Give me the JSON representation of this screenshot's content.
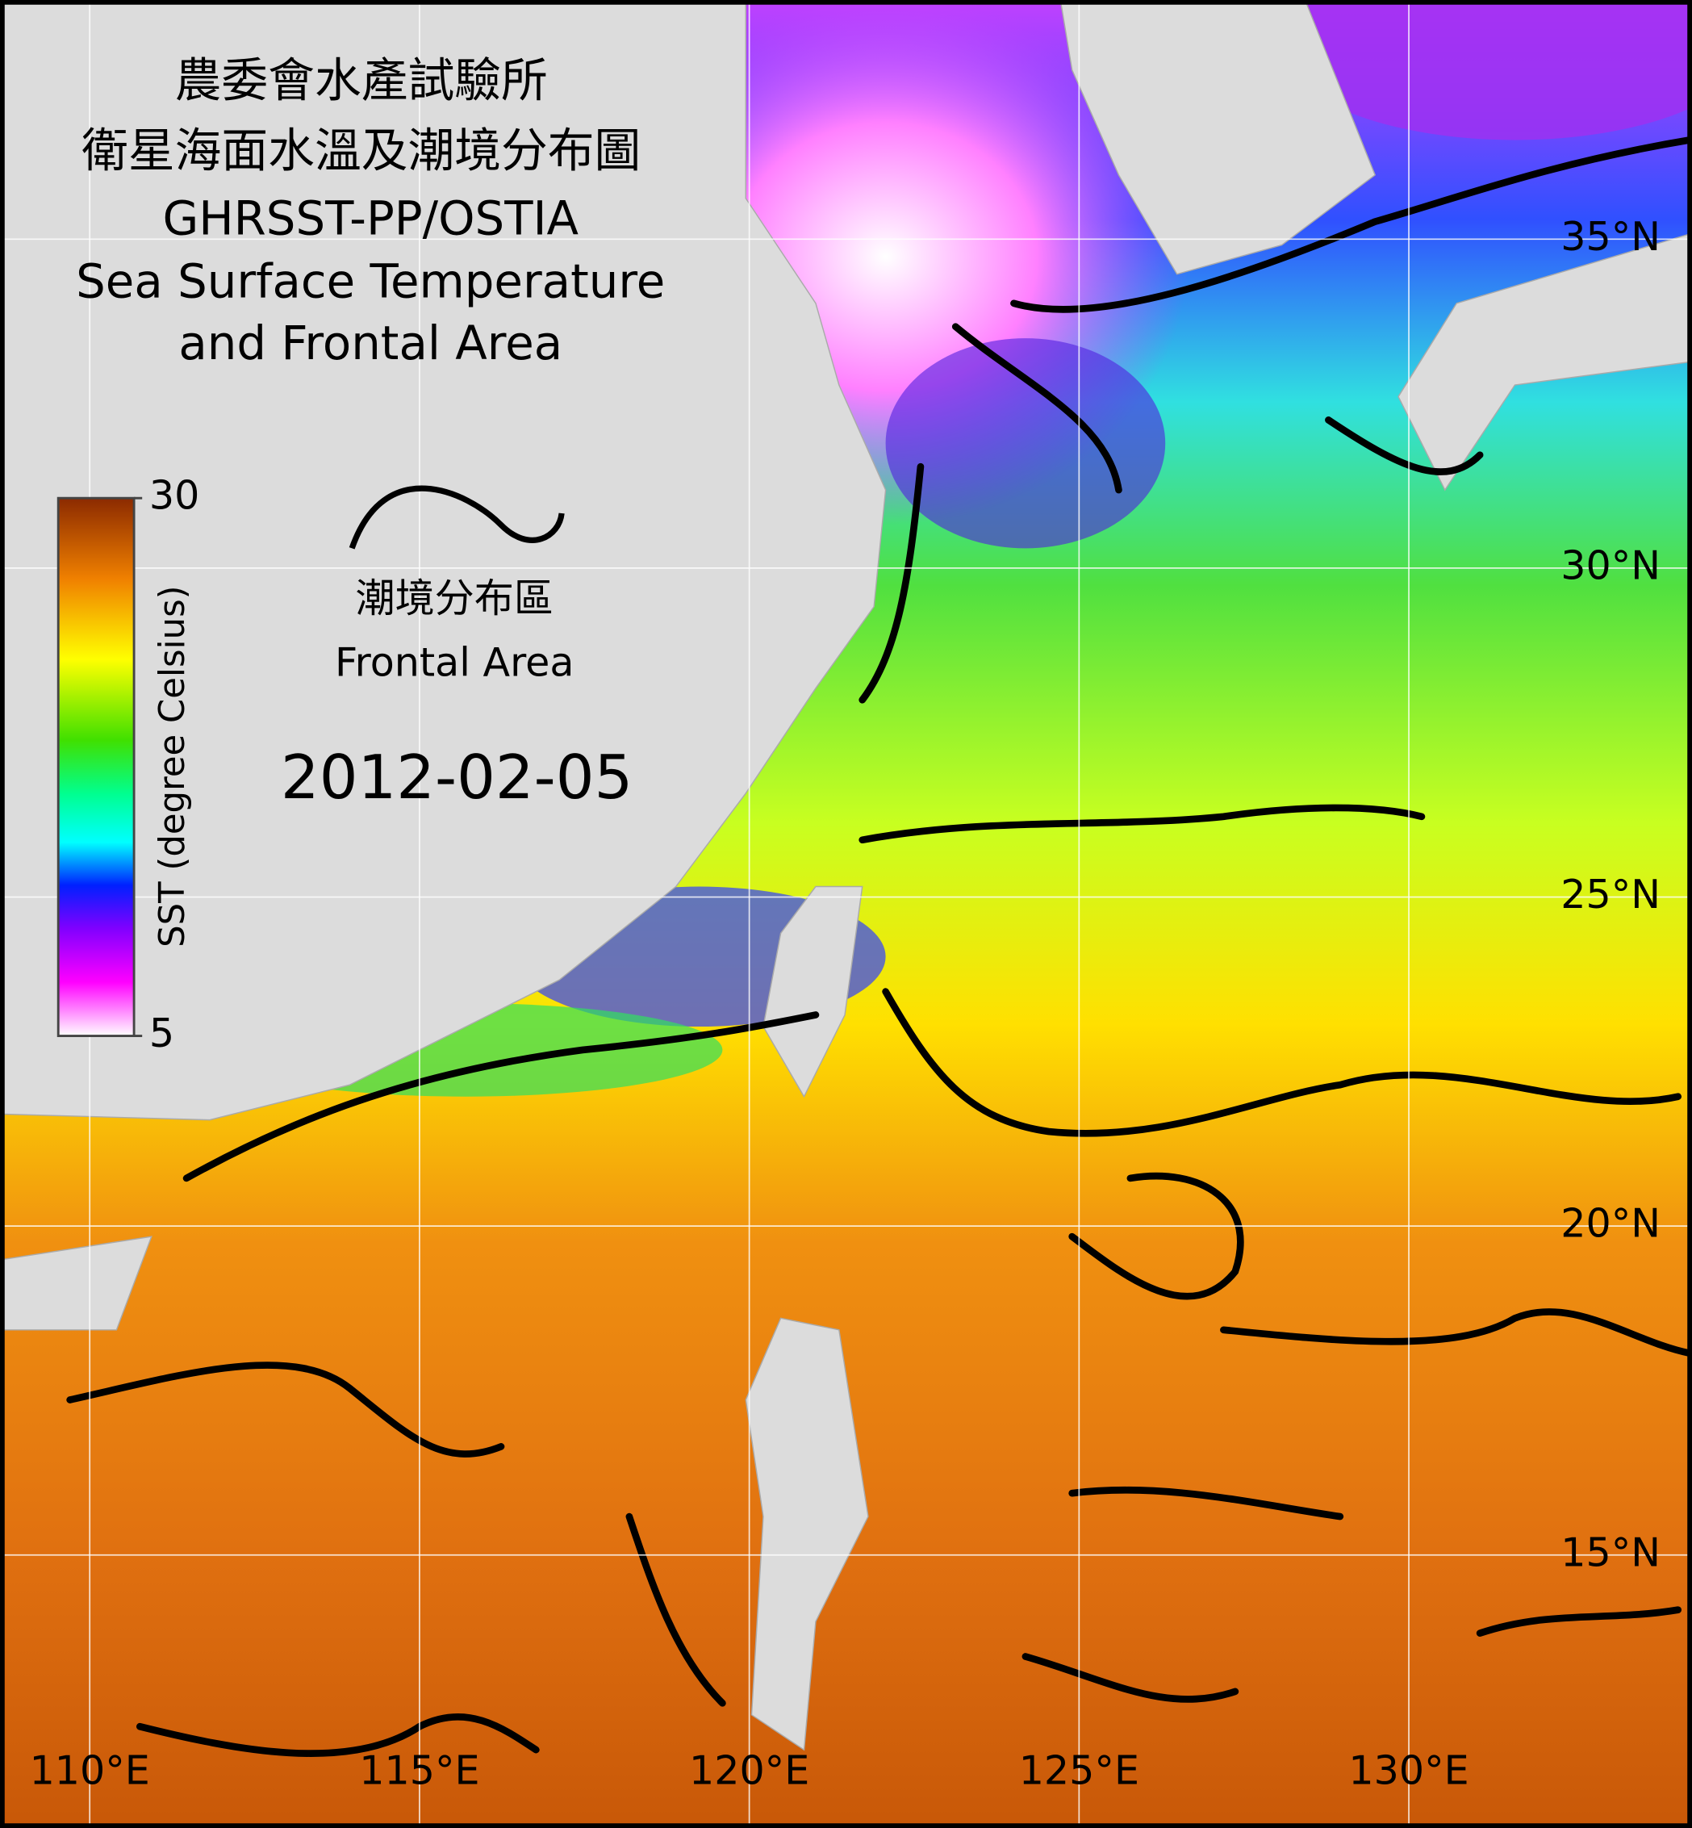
{
  "title": [
    "農委會水產試驗所",
    "衛星海面水溫及潮境分布圖",
    "GHRSST-PP/OSTIA",
    "Sea Surface Temperature",
    "and Frontal Area"
  ],
  "legend": {
    "chinese": "潮境分布區",
    "english": "Frontal Area"
  },
  "date": "2012-02-05",
  "colorbar": {
    "label": "SST (degree Celsius)",
    "lim": [
      5,
      30
    ],
    "ticks": [
      5,
      30
    ]
  },
  "grid": {
    "lat": [
      {
        "value": 35,
        "label": "35°N"
      },
      {
        "value": 30,
        "label": "30°N"
      },
      {
        "value": 25,
        "label": "25°N"
      },
      {
        "value": 20,
        "label": "20°N"
      },
      {
        "value": 15,
        "label": "15°N"
      }
    ],
    "lon": [
      {
        "value": 110,
        "label": "110°E"
      },
      {
        "value": 115,
        "label": "115°E"
      },
      {
        "value": 120,
        "label": "120°E"
      },
      {
        "value": 125,
        "label": "125°E"
      },
      {
        "value": 130,
        "label": "130°E"
      }
    ]
  }
}
